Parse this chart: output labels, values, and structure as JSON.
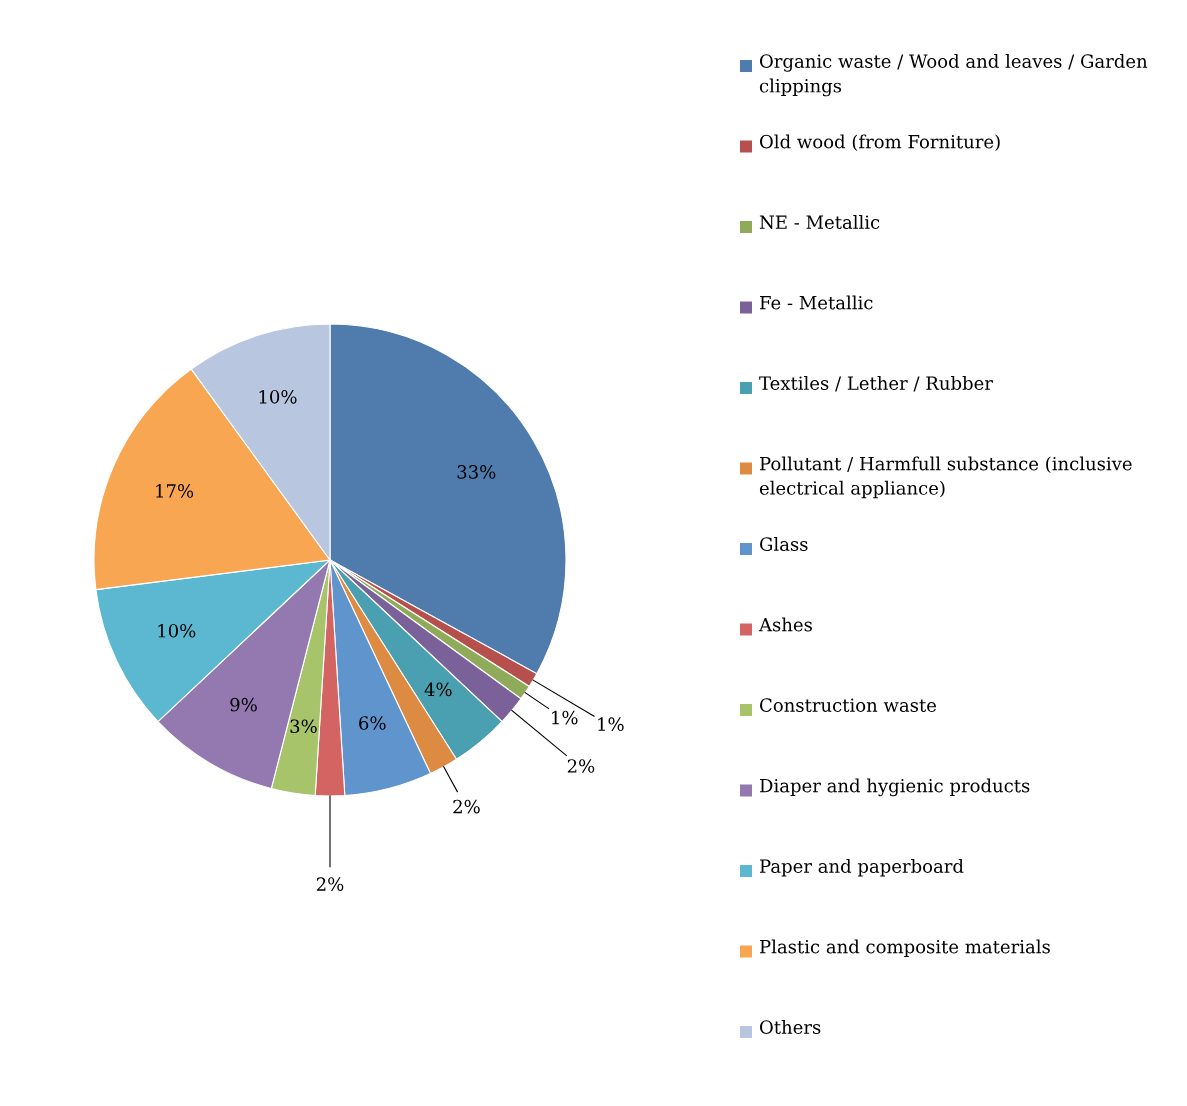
{
  "chart_data": {
    "type": "pie",
    "categories": [
      "Organic waste / Wood and leaves / Garden clippings",
      "Old wood (from Forniture)",
      "NE - Metallic",
      "Fe - Metallic",
      "Textiles / Lether / Rubber",
      "Pollutant / Harmfull substance (inclusive electrical appliance)",
      "Glass",
      "Ashes",
      "Construction waste",
      "Diaper and hygienic products",
      "Paper and paperboard",
      "Plastic and composite materials",
      "Others"
    ],
    "values": [
      33,
      1,
      1,
      2,
      4,
      2,
      6,
      2,
      3,
      9,
      10,
      17,
      10
    ],
    "value_labels": [
      "33%",
      "1%",
      "1%",
      "2%",
      "4%",
      "2%",
      "6%",
      "2%",
      "3%",
      "9%",
      "10%",
      "17%",
      "10%"
    ],
    "colors": [
      "#4f7cad",
      "#b5504d",
      "#8fab5a",
      "#7a619a",
      "#4a9fb1",
      "#dd8a43",
      "#5f95cc",
      "#d36462",
      "#a8c46b",
      "#9379b0",
      "#5bb8d0",
      "#f9a652",
      "#b8c6e0"
    ],
    "legend": "right"
  }
}
